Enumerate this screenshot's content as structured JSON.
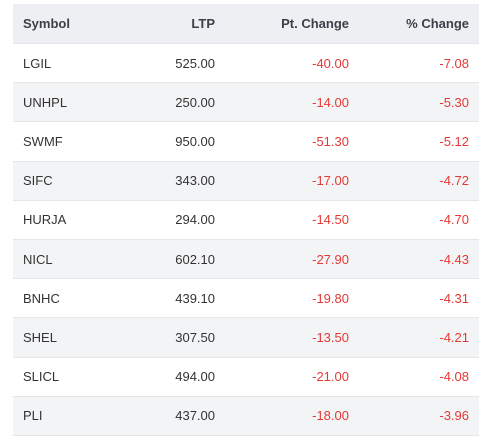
{
  "table": {
    "headers": {
      "symbol": "Symbol",
      "ltp": "LTP",
      "pt_change": "Pt. Change",
      "pct_change": "% Change"
    },
    "rows": [
      {
        "symbol": "LGIL",
        "ltp": "525.00",
        "pt_change": "-40.00",
        "pct_change": "-7.08"
      },
      {
        "symbol": "UNHPL",
        "ltp": "250.00",
        "pt_change": "-14.00",
        "pct_change": "-5.30"
      },
      {
        "symbol": "SWMF",
        "ltp": "950.00",
        "pt_change": "-51.30",
        "pct_change": "-5.12"
      },
      {
        "symbol": "SIFC",
        "ltp": "343.00",
        "pt_change": "-17.00",
        "pct_change": "-4.72"
      },
      {
        "symbol": "HURJA",
        "ltp": "294.00",
        "pt_change": "-14.50",
        "pct_change": "-4.70"
      },
      {
        "symbol": "NICL",
        "ltp": "602.10",
        "pt_change": "-27.90",
        "pct_change": "-4.43"
      },
      {
        "symbol": "BNHC",
        "ltp": "439.10",
        "pt_change": "-19.80",
        "pct_change": "-4.31"
      },
      {
        "symbol": "SHEL",
        "ltp": "307.50",
        "pt_change": "-13.50",
        "pct_change": "-4.21"
      },
      {
        "symbol": "SLICL",
        "ltp": "494.00",
        "pt_change": "-21.00",
        "pct_change": "-4.08"
      },
      {
        "symbol": "PLI",
        "ltp": "437.00",
        "pt_change": "-18.00",
        "pct_change": "-3.96"
      }
    ]
  },
  "colors": {
    "negative": "#e53935",
    "header_bg": "#eeeff2",
    "alt_row_bg": "#f3f4f6"
  }
}
